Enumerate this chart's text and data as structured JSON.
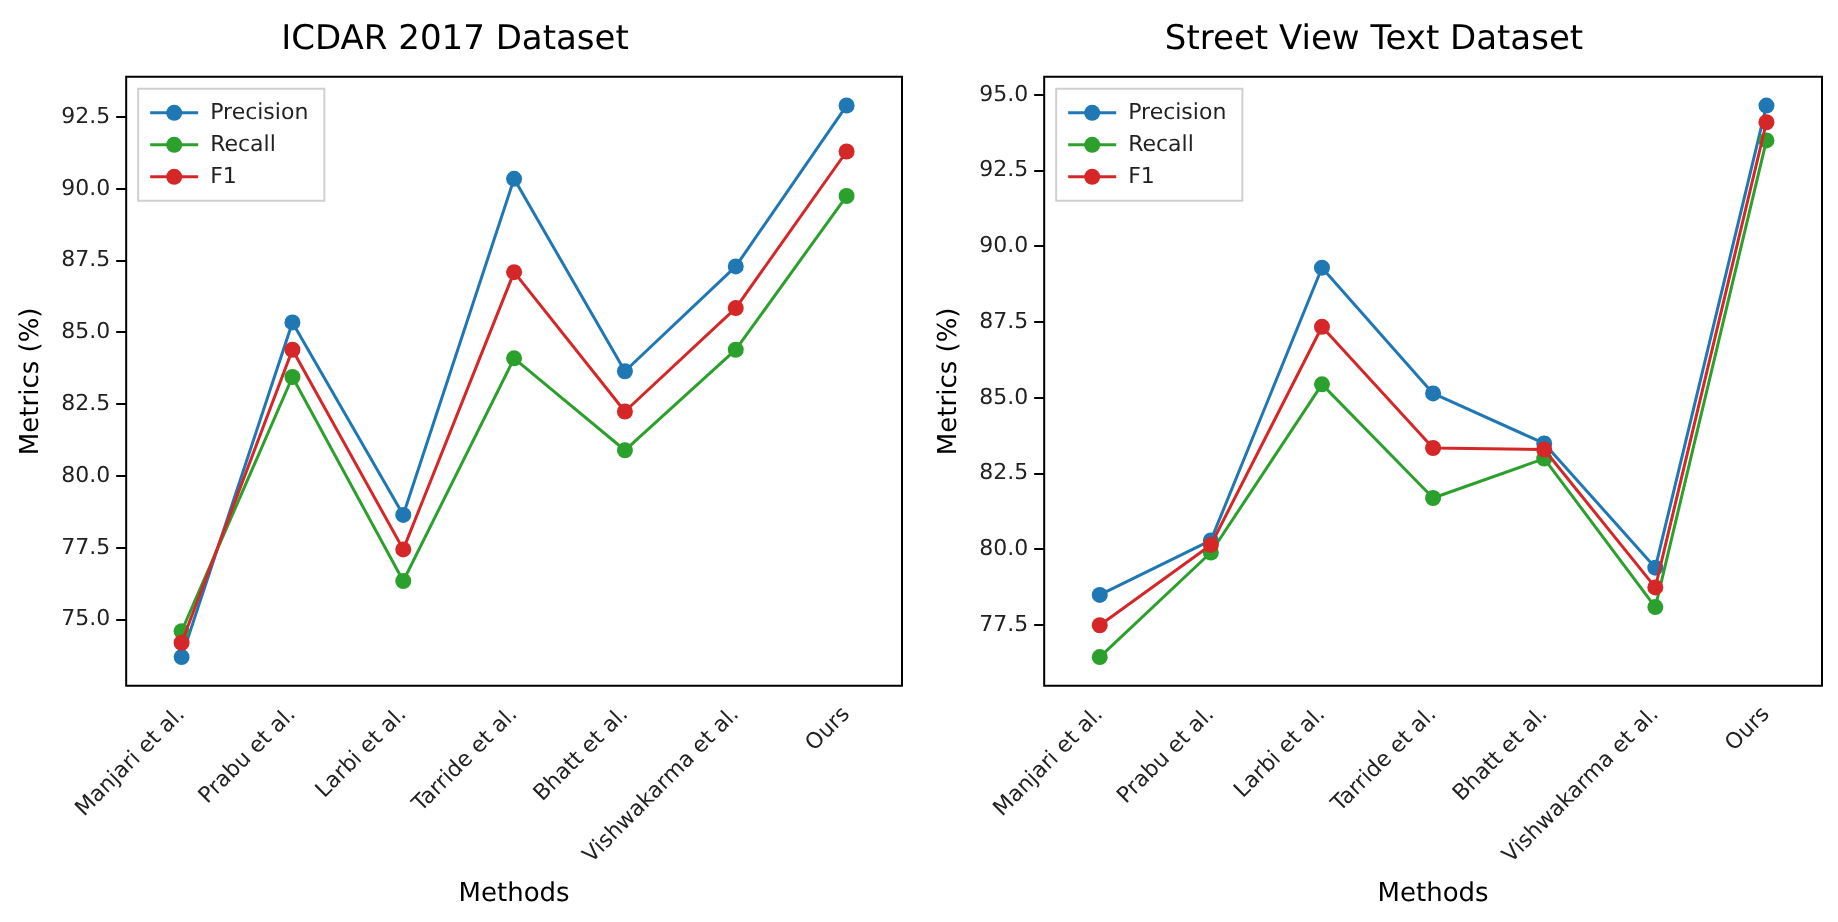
{
  "chart_data": [
    {
      "type": "line",
      "title": "ICDAR 2017 Dataset",
      "xlabel": "Methods",
      "ylabel": "Metrics (%)",
      "categories": [
        "Manjari et al.",
        "Prabu et al.",
        "Larbi et al.",
        "Tarride et al.",
        "Bhatt et al.",
        "Vishwakarma et al.",
        "Ours"
      ],
      "series": [
        {
          "name": "Precision",
          "color": "#1f77b4",
          "values": [
            73.7,
            85.35,
            78.65,
            90.35,
            83.65,
            87.3,
            92.9
          ]
        },
        {
          "name": "Recall",
          "color": "#2ca02c",
          "values": [
            74.6,
            83.45,
            76.35,
            84.1,
            80.9,
            84.4,
            89.75
          ]
        },
        {
          "name": "F1",
          "color": "#d62728",
          "values": [
            74.2,
            84.4,
            77.45,
            87.1,
            82.25,
            85.85,
            91.3
          ]
        }
      ],
      "ylim": [
        72.7,
        93.9
      ],
      "yticks": [
        {
          "value": 75,
          "label": "75.0"
        },
        77.5,
        {
          "value": 80,
          "label": "80.0"
        },
        82.5,
        {
          "value": 85,
          "label": "85.0"
        },
        87.5,
        {
          "value": 90,
          "label": "90.0"
        },
        92.5
      ],
      "legend": "top left",
      "marker": "circle",
      "grid": false
    },
    {
      "type": "line",
      "title": "Street View Text Dataset",
      "xlabel": "Methods",
      "ylabel": "Metrics (%)",
      "categories": [
        "Manjari et al.",
        "Prabu et al.",
        "Larbi et al.",
        "Tarride et al.",
        "Bhatt et al.",
        "Vishwakarma et al.",
        "Ours"
      ],
      "series": [
        {
          "name": "Precision",
          "color": "#1f77b4",
          "values": [
            78.5,
            80.3,
            89.3,
            85.15,
            83.5,
            79.4,
            94.65
          ]
        },
        {
          "name": "Recall",
          "color": "#2ca02c",
          "values": [
            76.45,
            79.9,
            85.45,
            81.7,
            83.0,
            78.1,
            93.5
          ]
        },
        {
          "name": "F1",
          "color": "#d62728",
          "values": [
            77.5,
            80.15,
            87.35,
            83.35,
            83.3,
            78.75,
            94.1
          ]
        }
      ],
      "ylim": [
        75.5,
        95.6
      ],
      "yticks": [
        77.5,
        {
          "value": 80,
          "label": "80.0"
        },
        82.5,
        {
          "value": 85,
          "label": "85.0"
        },
        87.5,
        {
          "value": 90,
          "label": "90.0"
        },
        92.5,
        {
          "value": 95,
          "label": "95.0"
        }
      ],
      "legend": "top left",
      "marker": "circle",
      "grid": false
    }
  ]
}
